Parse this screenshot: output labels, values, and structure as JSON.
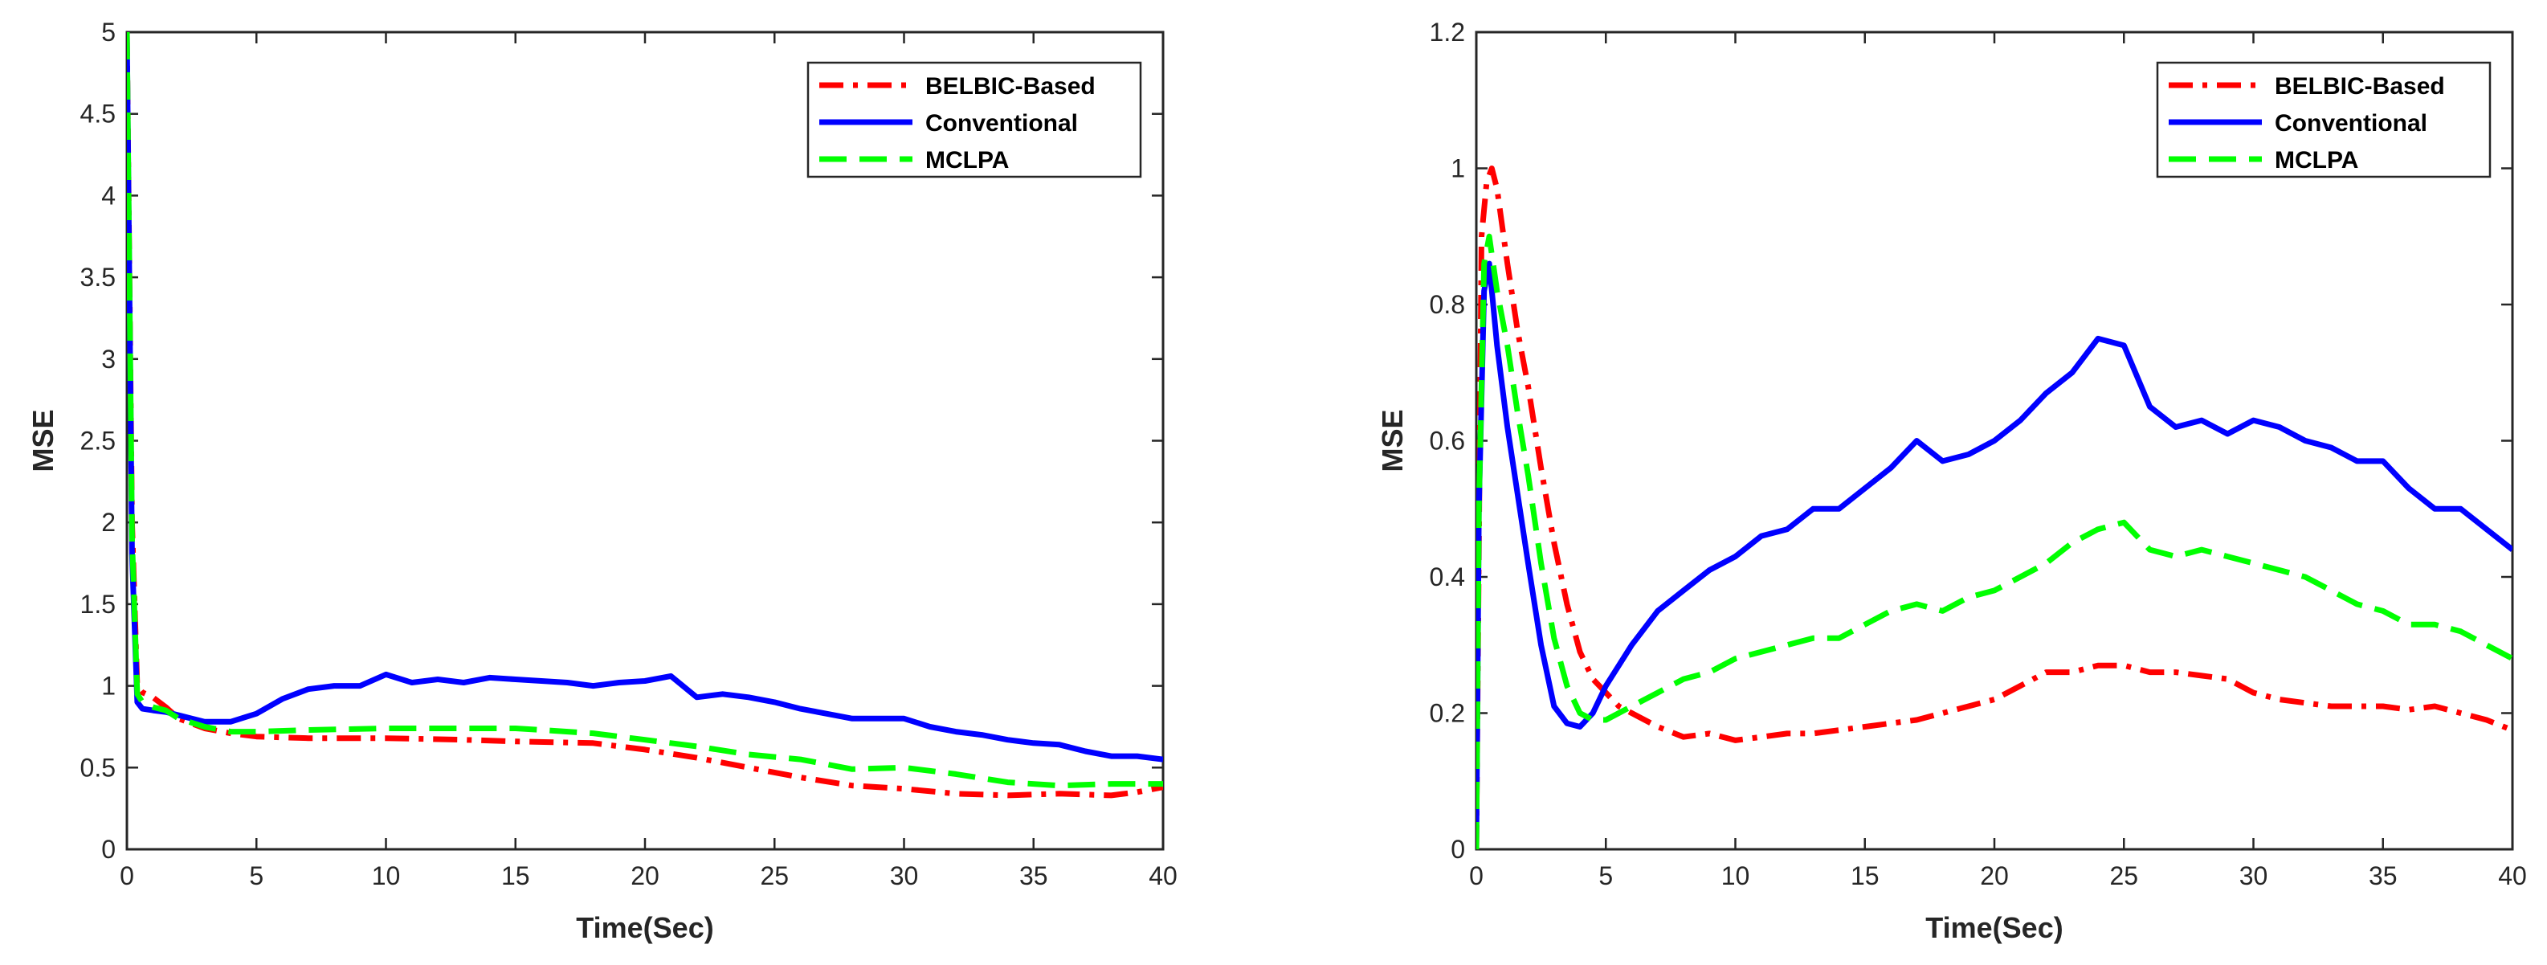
{
  "chart_data": [
    {
      "type": "line",
      "title": "",
      "xlabel": "Time(Sec)",
      "ylabel": "MSE",
      "xlim": [
        0,
        40
      ],
      "ylim": [
        0,
        5
      ],
      "xticks": [
        "0",
        "5",
        "10",
        "15",
        "20",
        "25",
        "30",
        "35",
        "40"
      ],
      "yticks": [
        "0",
        "0.5",
        "1",
        "1.5",
        "2",
        "2.5",
        "3",
        "3.5",
        "4",
        "4.5",
        "5"
      ],
      "grid": false,
      "legend_position": "top-right",
      "series": [
        {
          "name": "BELBIC-Based",
          "color": "#ff0000",
          "style": "dash-dot",
          "x": [
            0,
            0.2,
            0.4,
            0.6,
            1,
            1.5,
            2,
            3,
            4,
            5,
            7,
            10,
            13,
            15,
            18,
            20,
            22,
            24,
            26,
            28,
            30,
            32,
            34,
            36,
            38,
            39,
            40
          ],
          "y": [
            5,
            2.0,
            1.0,
            0.96,
            0.93,
            0.87,
            0.8,
            0.74,
            0.71,
            0.69,
            0.68,
            0.68,
            0.67,
            0.66,
            0.65,
            0.61,
            0.56,
            0.5,
            0.44,
            0.39,
            0.37,
            0.34,
            0.33,
            0.34,
            0.33,
            0.35,
            0.38
          ]
        },
        {
          "name": "Conventional",
          "color": "#0000ff",
          "style": "solid",
          "x": [
            0,
            0.2,
            0.4,
            0.6,
            1,
            1.5,
            2,
            3,
            4,
            5,
            6,
            7,
            8,
            9,
            10,
            11,
            12,
            13,
            14,
            15,
            16,
            17,
            18,
            19,
            20,
            21,
            22,
            23,
            24,
            25,
            26,
            27,
            28,
            29,
            30,
            31,
            32,
            33,
            34,
            35,
            36,
            37,
            38,
            39,
            40
          ],
          "y": [
            5,
            1.8,
            0.9,
            0.86,
            0.85,
            0.84,
            0.82,
            0.78,
            0.78,
            0.83,
            0.92,
            0.98,
            1.0,
            1.0,
            1.07,
            1.02,
            1.04,
            1.02,
            1.05,
            1.04,
            1.03,
            1.02,
            1.0,
            1.02,
            1.03,
            1.06,
            0.93,
            0.95,
            0.93,
            0.9,
            0.86,
            0.83,
            0.8,
            0.8,
            0.8,
            0.75,
            0.72,
            0.7,
            0.67,
            0.65,
            0.64,
            0.6,
            0.57,
            0.57,
            0.55
          ]
        },
        {
          "name": "MCLPA",
          "color": "#00ff00",
          "style": "dashed",
          "x": [
            0,
            0.2,
            0.4,
            0.6,
            1,
            1.5,
            2,
            3,
            4,
            5,
            7,
            10,
            12,
            15,
            18,
            20,
            22,
            24,
            26,
            28,
            30,
            32,
            34,
            36,
            38,
            40
          ],
          "y": [
            5,
            1.9,
            0.95,
            0.9,
            0.87,
            0.85,
            0.8,
            0.75,
            0.72,
            0.72,
            0.73,
            0.74,
            0.74,
            0.74,
            0.71,
            0.67,
            0.63,
            0.58,
            0.55,
            0.49,
            0.5,
            0.46,
            0.41,
            0.39,
            0.4,
            0.4
          ]
        }
      ]
    },
    {
      "type": "line",
      "title": "",
      "xlabel": "Time(Sec)",
      "ylabel": "MSE",
      "xlim": [
        0,
        40
      ],
      "ylim": [
        0,
        1.2
      ],
      "xticks": [
        "0",
        "5",
        "10",
        "15",
        "20",
        "25",
        "30",
        "35",
        "40"
      ],
      "yticks": [
        "0",
        "0.2",
        "0.4",
        "0.6",
        "0.8",
        "1",
        "1.2"
      ],
      "grid": false,
      "legend_position": "top-right",
      "series": [
        {
          "name": "BELBIC-Based",
          "color": "#ff0000",
          "style": "dash-dot",
          "x": [
            0,
            0.2,
            0.4,
            0.6,
            0.8,
            1.2,
            1.6,
            2,
            2.5,
            3,
            3.5,
            4,
            4.5,
            5,
            5.5,
            6,
            7,
            8,
            9,
            10,
            11,
            12,
            13,
            14,
            15,
            16,
            17,
            18,
            19,
            20,
            21,
            22,
            23,
            24,
            25,
            26,
            27,
            28,
            29,
            30,
            31,
            32,
            33,
            34,
            35,
            36,
            37,
            38,
            39,
            40
          ],
          "y": [
            0.0,
            0.9,
            0.98,
            1.0,
            0.97,
            0.86,
            0.76,
            0.68,
            0.56,
            0.45,
            0.36,
            0.29,
            0.25,
            0.23,
            0.21,
            0.2,
            0.18,
            0.165,
            0.17,
            0.16,
            0.165,
            0.17,
            0.17,
            0.175,
            0.18,
            0.185,
            0.19,
            0.2,
            0.21,
            0.22,
            0.24,
            0.26,
            0.26,
            0.27,
            0.27,
            0.26,
            0.26,
            0.255,
            0.25,
            0.23,
            0.22,
            0.215,
            0.21,
            0.21,
            0.21,
            0.205,
            0.21,
            0.2,
            0.19,
            0.175
          ]
        },
        {
          "name": "Conventional",
          "color": "#0000ff",
          "style": "solid",
          "x": [
            0,
            0.1,
            0.3,
            0.5,
            0.8,
            1.2,
            1.6,
            2,
            2.5,
            3,
            3.5,
            4,
            4.5,
            5,
            5.5,
            6,
            7,
            8,
            9,
            10,
            11,
            12,
            13,
            14,
            15,
            16,
            17,
            18,
            19,
            20,
            21,
            22,
            23,
            24,
            25,
            26,
            27,
            28,
            29,
            30,
            31,
            32,
            33,
            34,
            35,
            36,
            37,
            38,
            39,
            40
          ],
          "y": [
            0.0,
            0.5,
            0.82,
            0.86,
            0.74,
            0.62,
            0.52,
            0.42,
            0.3,
            0.21,
            0.185,
            0.18,
            0.2,
            0.24,
            0.27,
            0.3,
            0.35,
            0.38,
            0.41,
            0.43,
            0.46,
            0.47,
            0.5,
            0.5,
            0.53,
            0.56,
            0.6,
            0.57,
            0.58,
            0.6,
            0.63,
            0.67,
            0.7,
            0.75,
            0.74,
            0.65,
            0.62,
            0.63,
            0.61,
            0.63,
            0.62,
            0.6,
            0.59,
            0.57,
            0.57,
            0.53,
            0.5,
            0.5,
            0.47,
            0.44
          ]
        },
        {
          "name": "MCLPA",
          "color": "#00ff00",
          "style": "dashed",
          "x": [
            0,
            0.1,
            0.3,
            0.5,
            0.8,
            1.2,
            1.6,
            2,
            2.5,
            3,
            3.5,
            4,
            4.5,
            5,
            5.5,
            6,
            7,
            8,
            9,
            10,
            11,
            12,
            13,
            14,
            15,
            16,
            17,
            18,
            19,
            20,
            21,
            22,
            23,
            24,
            25,
            26,
            27,
            28,
            29,
            30,
            31,
            32,
            33,
            34,
            35,
            36,
            37,
            38,
            39,
            40
          ],
          "y": [
            0.0,
            0.5,
            0.86,
            0.9,
            0.82,
            0.74,
            0.64,
            0.55,
            0.42,
            0.31,
            0.24,
            0.2,
            0.19,
            0.19,
            0.2,
            0.21,
            0.23,
            0.25,
            0.26,
            0.28,
            0.29,
            0.3,
            0.31,
            0.31,
            0.33,
            0.35,
            0.36,
            0.35,
            0.37,
            0.38,
            0.4,
            0.42,
            0.45,
            0.47,
            0.48,
            0.44,
            0.43,
            0.44,
            0.43,
            0.42,
            0.41,
            0.4,
            0.38,
            0.36,
            0.35,
            0.33,
            0.33,
            0.32,
            0.3,
            0.28
          ]
        }
      ]
    }
  ]
}
